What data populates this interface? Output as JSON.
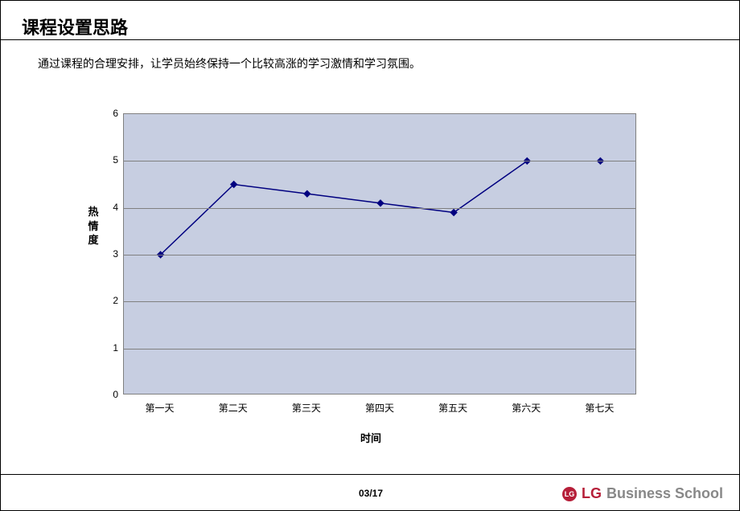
{
  "title": "课程设置思路",
  "subtitle": "通过课程的合理安排，让学员始终保持一个比较高涨的学习激情和学习氛围。",
  "chart": {
    "type": "line",
    "x_categories": [
      "第一天",
      "第二天",
      "第三天",
      "第四天",
      "第五天",
      "第六天",
      "第七天"
    ],
    "y_values": [
      3.0,
      4.5,
      4.3,
      4.1,
      3.9,
      5.0,
      5.0
    ],
    "ylim": [
      0,
      6
    ],
    "ytick_step": 1,
    "yaxis_title": "热情度",
    "xaxis_title": "时间",
    "plot_background": "#c7cee1",
    "grid_color": "#808080",
    "line_color": "#000080",
    "line_width": 1.5,
    "marker_color": "#000080",
    "marker_size": 4,
    "marker_shape": "diamond",
    "ytick_fontsize": 12,
    "xtick_fontsize": 12,
    "axis_title_fontsize": 13,
    "series_connect_last_two": false
  },
  "footer": {
    "page": "03/17",
    "logo_circle_text": "LG",
    "logo_text1": "LG",
    "logo_text2": "Business School",
    "logo_red": "#b61f39",
    "logo_gray": "#888888"
  }
}
